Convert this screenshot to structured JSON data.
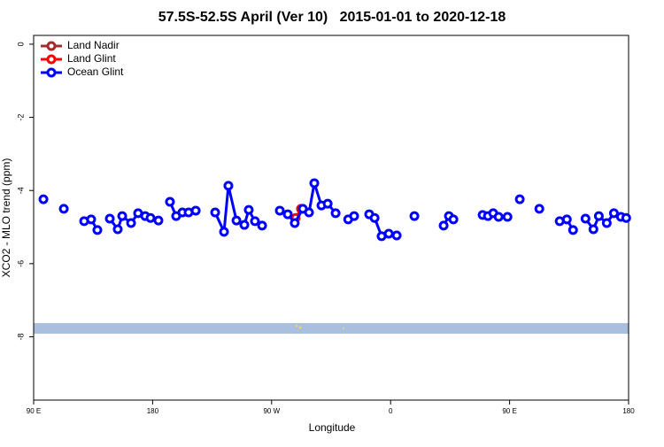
{
  "chart_data": {
    "type": "line",
    "title": "57.5S-52.5S April (Ver 10)   2015-01-01 to 2020-12-18",
    "x_label": "Longitude",
    "y_label": "XCO2 - MLO trend (ppm)",
    "xlim": [
      90,
      540
    ],
    "xticks": [
      {
        "value": 90,
        "label": "90 E"
      },
      180,
      {
        "value": 270,
        "label": "90 W"
      },
      {
        "value": 360,
        "label": "0"
      },
      {
        "value": 450,
        "label": "90 E"
      },
      {
        "value": 540,
        "label": "180"
      }
    ],
    "ylim": [
      -9.73,
      0.24
    ],
    "yticks": [
      0,
      -2,
      -4,
      -6,
      -8
    ],
    "legend": "top-left",
    "series": [
      {
        "name": "Land Nadir",
        "color": "#a52a2a",
        "x": [],
        "values": []
      },
      {
        "name": "Land Glint",
        "color": "#ff0000",
        "x": [
          288.2,
          292.2
        ],
        "values": [
          -4.75,
          -4.5
        ]
      },
      {
        "name": "Ocean Glint",
        "color": "#0000ff",
        "x": [
          97.4,
          null,
          112.8,
          null,
          128.2,
          133.5,
          138.2,
          null,
          147.6,
          153.6,
          157.0,
          163.7,
          169.0,
          174.4,
          178.4,
          184.4,
          null,
          193.1,
          197.8,
          202.5,
          207.2,
          212.6,
          null,
          227.3,
          234.0,
          237.3,
          243.4,
          249.4,
          252.7,
          257.4,
          262.8,
          null,
          276.2,
          282.2,
          287.5,
          293.6,
          298.3,
          302.3,
          307.7,
          312.4,
          318.4,
          null,
          327.9,
          332.4,
          null,
          343.8,
          347.9,
          353.2,
          358.6,
          364.6,
          null,
          378.0,
          null,
          400.1,
          404.1,
          407.5,
          null,
          429.6,
          433.6,
          437.6,
          441.7,
          448.4,
          null,
          457.7,
          null,
          472.5,
          null,
          487.9,
          493.3,
          498.0,
          null,
          507.4,
          513.4,
          517.5,
          523.5,
          528.9,
          534.2,
          538.2
        ],
        "values": [
          -4.24,
          null,
          -4.5,
          null,
          -4.84,
          -4.79,
          -5.08,
          null,
          -4.77,
          -5.06,
          -4.7,
          -4.89,
          -4.62,
          -4.7,
          -4.75,
          -4.82,
          null,
          -4.31,
          -4.7,
          -4.6,
          -4.6,
          -4.55,
          null,
          -4.6,
          -5.13,
          -3.87,
          -4.82,
          -4.94,
          -4.53,
          -4.84,
          -4.96,
          null,
          -4.55,
          -4.65,
          -4.89,
          -4.5,
          -4.6,
          -3.8,
          -4.41,
          -4.36,
          -4.62,
          null,
          -4.79,
          -4.7,
          null,
          -4.65,
          -4.75,
          -5.25,
          -5.18,
          -5.23,
          null,
          -4.7,
          null,
          -4.96,
          -4.7,
          -4.79,
          null,
          -4.67,
          -4.7,
          -4.62,
          -4.72,
          -4.72,
          null,
          -4.24,
          null,
          -4.5,
          null,
          -4.84,
          -4.79,
          -5.08,
          null,
          -4.77,
          -5.06,
          -4.7,
          -4.89,
          -4.62,
          -4.72,
          -4.75
        ]
      }
    ]
  }
}
